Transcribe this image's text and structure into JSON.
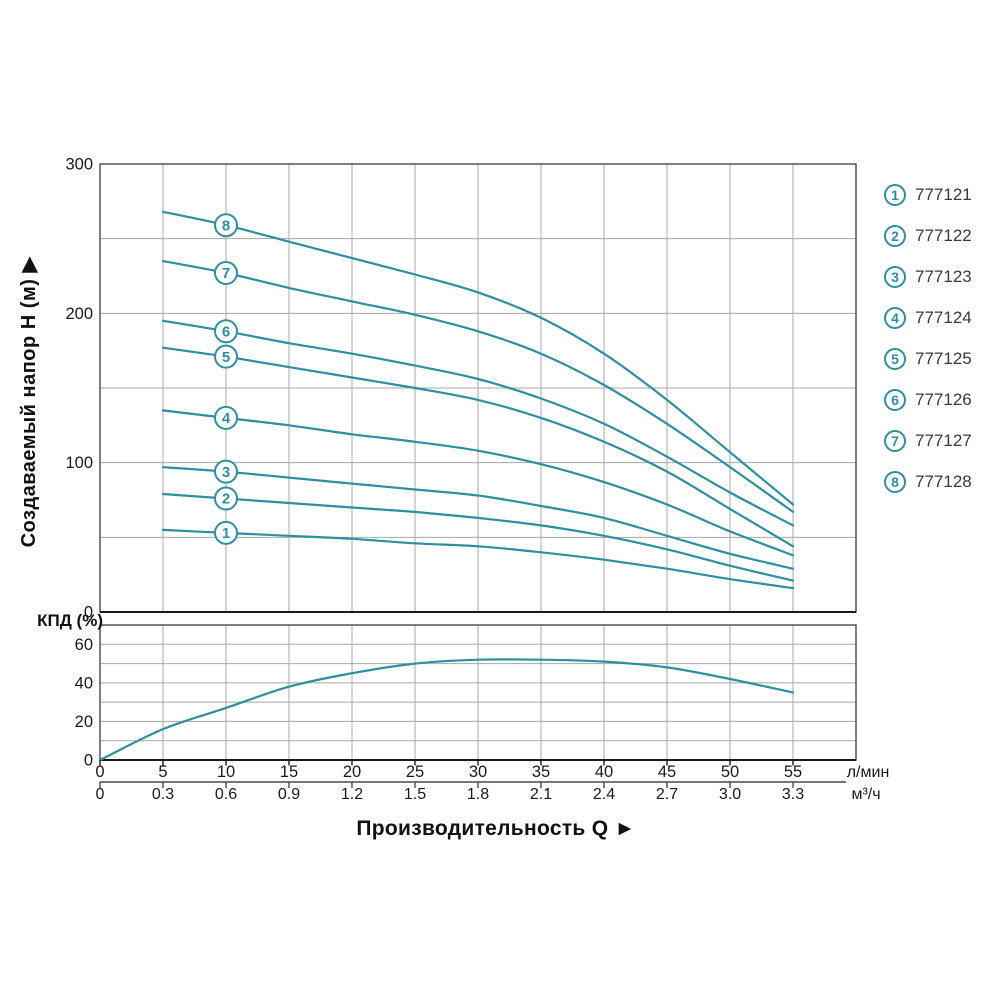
{
  "figure": {
    "y_axis_title": "Создаваемый напор H (м) ▶",
    "x_axis_title": "Производительность Q ►",
    "efficiency_label": "КПД (%)",
    "unit_primary": "л/мин",
    "unit_secondary": "м³/ч"
  },
  "legend": {
    "items": [
      {
        "num": "1",
        "article": "777121"
      },
      {
        "num": "2",
        "article": "777122"
      },
      {
        "num": "3",
        "article": "777123"
      },
      {
        "num": "4",
        "article": "777124"
      },
      {
        "num": "5",
        "article": "777125"
      },
      {
        "num": "6",
        "article": "777126"
      },
      {
        "num": "7",
        "article": "777127"
      },
      {
        "num": "8",
        "article": "777128"
      }
    ]
  },
  "colors": {
    "curve": "#2E8FA0",
    "grid": "#A8A8A8",
    "border": "#4A4A4A",
    "axis": "#1A1A1A",
    "text": "#1A1A1A",
    "legend_text": "#3A3A3A"
  },
  "chart_data": {
    "type": "line",
    "xlabel": "Производительность Q",
    "x_unit_primary": "л/мин",
    "x_unit_secondary": "м³/ч",
    "xlim": [
      0,
      60
    ],
    "x_ticks_lmin": [
      "0",
      "5",
      "10",
      "15",
      "20",
      "25",
      "30",
      "35",
      "40",
      "45",
      "50",
      "55"
    ],
    "x_ticks_m3h": [
      "0",
      "0.3",
      "0.6",
      "0.9",
      "1.2",
      "1.5",
      "1.8",
      "2.1",
      "2.4",
      "2.7",
      "3.0",
      "3.3"
    ],
    "head_panel": {
      "ylabel": "Создаваемый напор H (м)",
      "ylim": [
        0,
        300
      ],
      "y_tick_labels": [
        "0",
        "100",
        "200",
        "300"
      ],
      "y_tick_values": [
        0,
        100,
        200,
        300
      ],
      "y_grid_step": 50,
      "x": [
        5,
        10,
        15,
        20,
        25,
        30,
        35,
        40,
        45,
        50,
        55
      ],
      "curve_label_at_x": 10,
      "series": [
        {
          "label": "1",
          "article": "777121",
          "values": [
            55,
            53,
            51,
            49,
            46,
            44,
            40,
            35,
            29,
            22,
            16
          ]
        },
        {
          "label": "2",
          "article": "777122",
          "values": [
            79,
            76,
            73,
            70,
            67,
            63,
            58,
            51,
            42,
            31,
            21
          ]
        },
        {
          "label": "3",
          "article": "777123",
          "values": [
            97,
            94,
            90,
            86,
            82,
            78,
            71,
            63,
            51,
            39,
            29
          ]
        },
        {
          "label": "4",
          "article": "777124",
          "values": [
            135,
            130,
            125,
            119,
            114,
            108,
            99,
            87,
            72,
            54,
            38
          ]
        },
        {
          "label": "5",
          "article": "777125",
          "values": [
            177,
            171,
            164,
            157,
            150,
            142,
            130,
            114,
            94,
            69,
            44
          ]
        },
        {
          "label": "6",
          "article": "777126",
          "values": [
            195,
            188,
            180,
            173,
            165,
            156,
            143,
            126,
            104,
            80,
            58
          ]
        },
        {
          "label": "7",
          "article": "777127",
          "values": [
            235,
            227,
            217,
            208,
            199,
            188,
            173,
            152,
            126,
            97,
            67
          ]
        },
        {
          "label": "8",
          "article": "777128",
          "values": [
            268,
            259,
            248,
            237,
            226,
            214,
            197,
            173,
            142,
            107,
            72
          ]
        }
      ]
    },
    "efficiency_panel": {
      "ylabel": "КПД (%)",
      "ylim": [
        0,
        70
      ],
      "y_tick_labels": [
        "0",
        "20",
        "40",
        "60"
      ],
      "y_tick_values": [
        0,
        20,
        40,
        60
      ],
      "y_grid_step": 10,
      "x": [
        0,
        5,
        10,
        15,
        20,
        25,
        30,
        35,
        40,
        45,
        50,
        55
      ],
      "values": [
        0,
        16,
        27,
        38,
        45,
        50,
        52,
        52,
        51,
        48,
        42,
        35
      ]
    }
  }
}
